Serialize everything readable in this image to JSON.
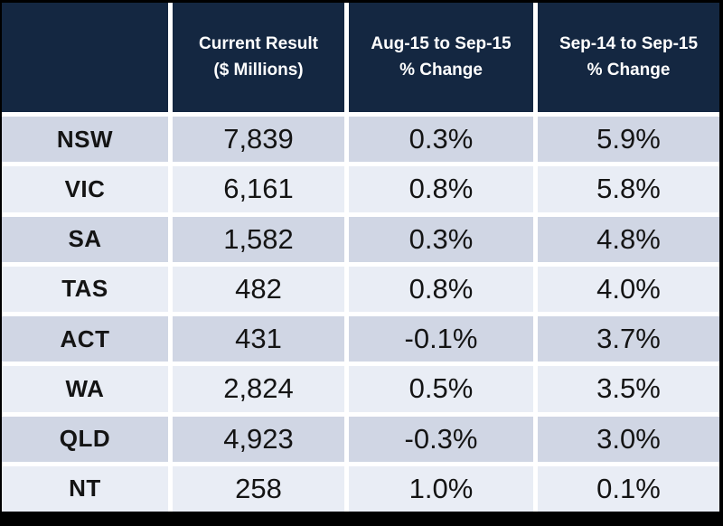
{
  "colors": {
    "frame": "#000000",
    "header_bg": "#142741",
    "header_text": "#FFFFFF",
    "row_dark": "#D0D6E4",
    "row_light": "#E9EDF5",
    "body_text": "#141414"
  },
  "table": {
    "header": {
      "state_col": "",
      "current_result_line1": "Current Result",
      "current_result_line2": "($ Millions)",
      "mom_line1": "Aug-15 to Sep-15",
      "mom_line2": "% Change",
      "yoy_line1": "Sep-14 to Sep-15",
      "yoy_line2": "% Change"
    },
    "rows": [
      {
        "state": "NSW",
        "current_result": "7,839",
        "mom_change": "0.3%",
        "yoy_change": "5.9%"
      },
      {
        "state": "VIC",
        "current_result": "6,161",
        "mom_change": "0.8%",
        "yoy_change": "5.8%"
      },
      {
        "state": "SA",
        "current_result": "1,582",
        "mom_change": "0.3%",
        "yoy_change": "4.8%"
      },
      {
        "state": "TAS",
        "current_result": "482",
        "mom_change": "0.8%",
        "yoy_change": "4.0%"
      },
      {
        "state": "ACT",
        "current_result": "431",
        "mom_change": "-0.1%",
        "yoy_change": "3.7%"
      },
      {
        "state": "WA",
        "current_result": "2,824",
        "mom_change": "0.5%",
        "yoy_change": "3.5%"
      },
      {
        "state": "QLD",
        "current_result": "4,923",
        "mom_change": "-0.3%",
        "yoy_change": "3.0%"
      },
      {
        "state": "NT",
        "current_result": "258",
        "mom_change": "1.0%",
        "yoy_change": "0.1%"
      }
    ]
  },
  "chart_data": {
    "type": "table",
    "title": "",
    "columns": [
      "",
      "Current Result ($ Millions)",
      "Aug-15 to Sep-15 % Change",
      "Sep-14 to Sep-15 % Change"
    ],
    "rows": [
      [
        "NSW",
        7839,
        "0.3%",
        "5.9%"
      ],
      [
        "VIC",
        6161,
        "0.8%",
        "5.8%"
      ],
      [
        "SA",
        1582,
        "0.3%",
        "4.8%"
      ],
      [
        "TAS",
        482,
        "0.8%",
        "4.0%"
      ],
      [
        "ACT",
        431,
        "-0.1%",
        "3.7%"
      ],
      [
        "WA",
        2824,
        "0.5%",
        "3.5%"
      ],
      [
        "QLD",
        4923,
        "-0.3%",
        "3.0%"
      ],
      [
        "NT",
        258,
        "1.0%",
        "0.1%"
      ]
    ]
  }
}
